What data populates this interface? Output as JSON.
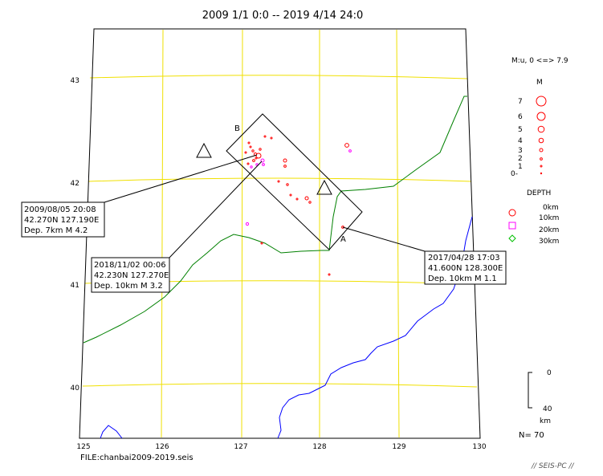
{
  "title": "2009 1/1 0:0 -- 2019 4/14 24:0",
  "file_label": "FILE:chanbai2009-2019.seis",
  "brand": "// SEIS-PC //",
  "count_label": "N= 70",
  "map": {
    "lon_labels": [
      "125",
      "126",
      "127",
      "128",
      "129",
      "130"
    ],
    "lat_labels": [
      "43",
      "42",
      "41",
      "40"
    ],
    "colors": {
      "frame": "#000000",
      "grid": "#f0e000",
      "border": "#008000",
      "river": "#0000ff",
      "event": "#ff0000",
      "event_mid": "#ff00ff",
      "event_deep": "#00c000"
    }
  },
  "section": {
    "label_a": "A",
    "label_b": "B"
  },
  "legend": {
    "magnitude_header": "M:u, 0 <=> 7.9",
    "magnitude_title": "M",
    "magnitude_levels": [
      "7",
      "6",
      "5",
      "4",
      "3",
      "2",
      "1",
      "0-"
    ],
    "depth_title": "DEPTH",
    "depth_levels": [
      "0km",
      "10km",
      "20km",
      "30km"
    ]
  },
  "depth_scale": {
    "top": "0",
    "bottom": "40",
    "unit": "km"
  },
  "callouts": [
    {
      "line1": "2009/08/05 20:08",
      "line2": "42.270N  127.190E",
      "line3": "Dep. 7km    M 4.2"
    },
    {
      "line1": "2018/11/02 00:06",
      "line2": "42.230N  127.270E",
      "line3": "Dep. 10km   M 3.2"
    },
    {
      "line1": "2017/04/28 17:03",
      "line2": "41.600N  128.300E",
      "line3": "Dep. 10km   M 1.1"
    }
  ]
}
